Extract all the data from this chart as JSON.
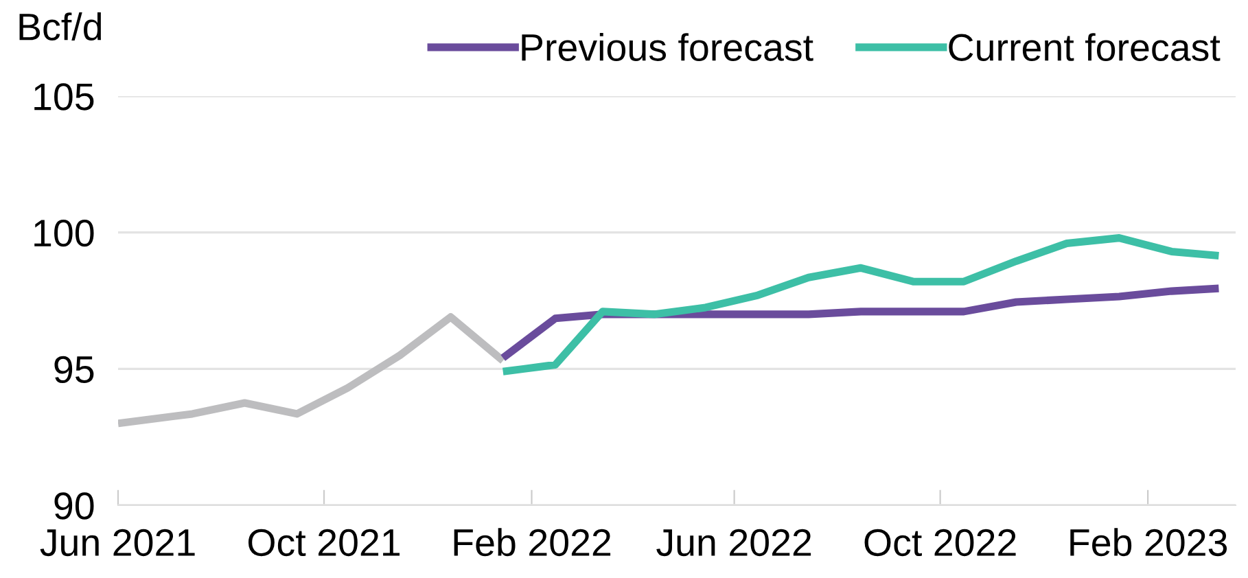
{
  "chart_data": {
    "type": "line",
    "ylabel": "Bcf/d",
    "series": [
      {
        "color": "#bdbdbf",
        "x": [
          "2021-06-01",
          "2021-07-15",
          "2021-08-15",
          "2021-09-15",
          "2021-10-15",
          "2021-11-15",
          "2021-12-15",
          "2022-01-15"
        ],
        "values": [
          93.0,
          93.35,
          93.75,
          93.35,
          94.3,
          95.5,
          96.9,
          95.3
        ]
      },
      {
        "name": "Previous forecast",
        "color": "#6a4c9c",
        "x": [
          "2022-01-15",
          "2022-02-15",
          "2022-03-15",
          "2022-04-15",
          "2022-05-15",
          "2022-06-15",
          "2022-07-15",
          "2022-08-15",
          "2022-09-15",
          "2022-10-15",
          "2022-11-15",
          "2022-12-15",
          "2023-01-15",
          "2023-02-15",
          "2023-03-15"
        ],
        "values": [
          95.4,
          96.85,
          97.0,
          97.0,
          97.0,
          97.0,
          97.0,
          97.1,
          97.1,
          97.1,
          97.45,
          97.55,
          97.65,
          97.85,
          97.95
        ]
      },
      {
        "name": "Current forecast",
        "color": "#3dbfa6",
        "x": [
          "2022-01-15",
          "2022-02-15",
          "2022-03-15",
          "2022-04-15",
          "2022-05-15",
          "2022-06-15",
          "2022-07-15",
          "2022-08-15",
          "2022-09-15",
          "2022-10-15",
          "2022-11-15",
          "2022-12-15",
          "2023-01-15",
          "2023-02-15",
          "2023-03-15"
        ],
        "values": [
          94.9,
          95.15,
          97.1,
          97.0,
          97.25,
          97.7,
          98.35,
          98.7,
          98.2,
          98.2,
          98.95,
          99.6,
          99.8,
          99.3,
          99.15
        ]
      }
    ],
    "xlim": [
      "2021-06-01",
      "2023-03-25"
    ],
    "xticks": [
      {
        "value": "2021-06-01",
        "label": "Jun 2021"
      },
      {
        "value": "2021-10-01",
        "label": "Oct 2021"
      },
      {
        "value": "2022-02-01",
        "label": "Feb 2022"
      },
      {
        "value": "2022-06-01",
        "label": "Jun 2022"
      },
      {
        "value": "2022-10-01",
        "label": "Oct 2022"
      },
      {
        "value": "2023-02-01",
        "label": "Feb 2023"
      }
    ],
    "ylim": [
      90,
      105
    ],
    "yticks": [
      90,
      95,
      100,
      105
    ],
    "grid": "y",
    "legend": "top right",
    "marker": "none",
    "line_style": "solid"
  }
}
